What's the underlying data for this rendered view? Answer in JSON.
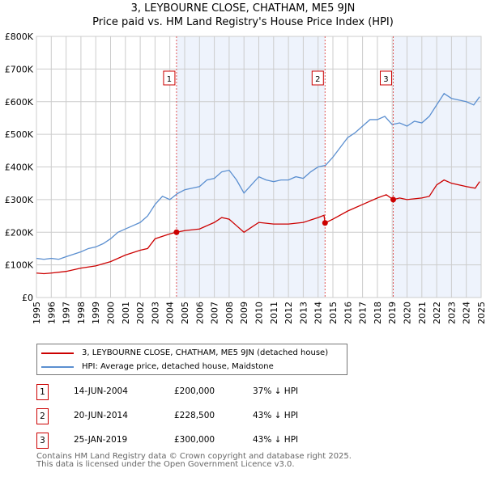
{
  "chart_data": {
    "type": "line",
    "title": "3, LEYBOURNE CLOSE, CHATHAM, ME5 9JN",
    "subtitle": "Price paid vs. HM Land Registry's House Price Index (HPI)",
    "xlim": [
      1995,
      2025
    ],
    "ylim": [
      0,
      800000
    ],
    "yticks": [
      {
        "v": 0,
        "label": "£0"
      },
      {
        "v": 100000,
        "label": "£100K"
      },
      {
        "v": 200000,
        "label": "£200K"
      },
      {
        "v": 300000,
        "label": "£300K"
      },
      {
        "v": 400000,
        "label": "£400K"
      },
      {
        "v": 500000,
        "label": "£500K"
      },
      {
        "v": 600000,
        "label": "£600K"
      },
      {
        "v": 700000,
        "label": "£700K"
      },
      {
        "v": 800000,
        "label": "£800K"
      }
    ],
    "xticks": [
      "1995",
      "1996",
      "1997",
      "1998",
      "1999",
      "2000",
      "2001",
      "2002",
      "2003",
      "2004",
      "2005",
      "2006",
      "2007",
      "2008",
      "2009",
      "2010",
      "2011",
      "2012",
      "2013",
      "2014",
      "2015",
      "2016",
      "2017",
      "2018",
      "2019",
      "2020",
      "2021",
      "2022",
      "2023",
      "2024",
      "2025"
    ],
    "grid": true,
    "series": [
      {
        "name": "3, LEYBOURNE CLOSE, CHATHAM, ME5 9JN (detached house)",
        "color": "#cc0000",
        "x": [
          1995,
          1995.5,
          1996,
          1997,
          1998,
          1999,
          2000,
          2001,
          2002,
          2002.5,
          2003,
          2004,
          2004.45,
          2005,
          2006,
          2007,
          2007.5,
          2008,
          2008.5,
          2009,
          2009.5,
          2010,
          2011,
          2012,
          2013,
          2014,
          2014.4,
          2014.47,
          2015,
          2016,
          2017,
          2018,
          2018.6,
          2019.07,
          2019.5,
          2020,
          2021,
          2021.5,
          2022,
          2022.5,
          2023,
          2024,
          2024.6,
          2024.9
        ],
        "y": [
          75000,
          73000,
          75000,
          80000,
          90000,
          97000,
          110000,
          130000,
          145000,
          150000,
          180000,
          195000,
          200000,
          205000,
          210000,
          230000,
          245000,
          240000,
          220000,
          200000,
          215000,
          230000,
          225000,
          225000,
          230000,
          245000,
          252000,
          228500,
          240000,
          265000,
          285000,
          305000,
          315000,
          300000,
          305000,
          300000,
          305000,
          310000,
          345000,
          360000,
          350000,
          340000,
          335000,
          355000
        ]
      },
      {
        "name": "HPI: Average price, detached house, Maidstone",
        "color": "#5b8fd0",
        "x": [
          1995,
          1995.5,
          1996,
          1996.5,
          1997,
          1998,
          1998.5,
          1999,
          1999.5,
          2000,
          2000.5,
          2001,
          2001.5,
          2002,
          2002.5,
          2003,
          2003.5,
          2004,
          2004.5,
          2005,
          2005.5,
          2006,
          2006.5,
          2007,
          2007.5,
          2008,
          2008.5,
          2009,
          2009.5,
          2010,
          2010.5,
          2011,
          2011.5,
          2012,
          2012.5,
          2013,
          2013.5,
          2014,
          2014.5,
          2015,
          2015.5,
          2016,
          2016.5,
          2017,
          2017.5,
          2018,
          2018.5,
          2019,
          2019.5,
          2020,
          2020.5,
          2021,
          2021.5,
          2022,
          2022.5,
          2023,
          2023.5,
          2024,
          2024.5,
          2024.9
        ],
        "y": [
          120000,
          117000,
          120000,
          117000,
          125000,
          140000,
          150000,
          155000,
          165000,
          180000,
          200000,
          210000,
          220000,
          230000,
          250000,
          285000,
          310000,
          300000,
          318000,
          330000,
          335000,
          340000,
          360000,
          365000,
          385000,
          390000,
          360000,
          320000,
          345000,
          370000,
          360000,
          355000,
          360000,
          360000,
          370000,
          365000,
          385000,
          400000,
          405000,
          430000,
          460000,
          490000,
          505000,
          525000,
          545000,
          545000,
          555000,
          530000,
          535000,
          525000,
          540000,
          535000,
          555000,
          590000,
          625000,
          610000,
          605000,
          600000,
          590000,
          615000
        ]
      }
    ],
    "sales": [
      {
        "num": "1",
        "x": 2004.45,
        "y": 200000,
        "date": "14-JUN-2004",
        "price": "£200,000",
        "hpi": "37% ↓ HPI"
      },
      {
        "num": "2",
        "x": 2014.47,
        "y": 228500,
        "date": "20-JUN-2014",
        "price": "£228,500",
        "hpi": "43% ↓ HPI"
      },
      {
        "num": "3",
        "x": 2019.07,
        "y": 300000,
        "date": "25-JAN-2019",
        "price": "£300,000",
        "hpi": "43% ↓ HPI"
      }
    ]
  },
  "footer": {
    "line1": "Contains HM Land Registry data © Crown copyright and database right 2025.",
    "line2": "This data is licensed under the Open Government Licence v3.0."
  }
}
